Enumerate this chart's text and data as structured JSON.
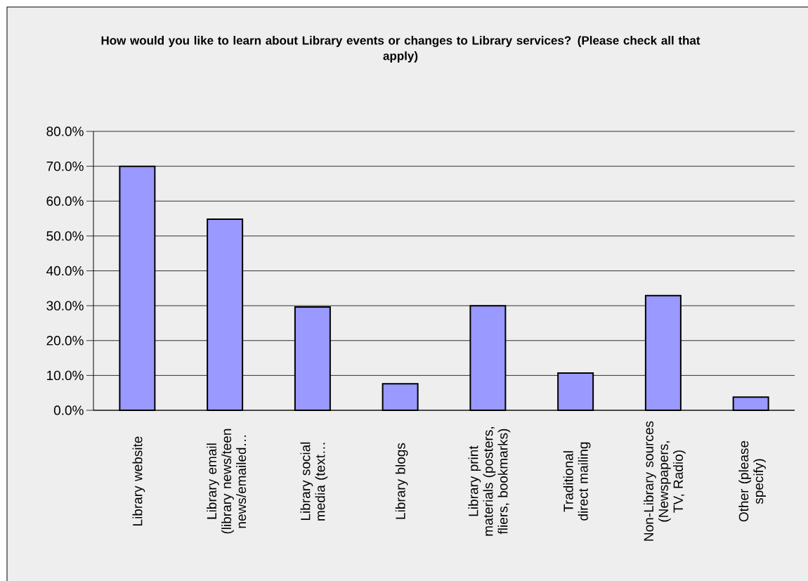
{
  "chart_data": {
    "type": "bar",
    "title": "How would you like to learn about Library events or changes to Library services? (Please check all that apply)",
    "categories": [
      "Library website",
      "Library email (library news/teen news/emailed…",
      "Library social media (text…",
      "Library blogs",
      "Library print materials (posters, fliers, bookmarks)",
      "Traditional direct mailing",
      "Non-Library sources (Newspapers, TV, Radio)",
      "Other (please specify)"
    ],
    "values": [
      70.0,
      54.8,
      29.6,
      7.6,
      30.0,
      10.7,
      32.9,
      3.8
    ],
    "color": "#9999ff",
    "ylim": [
      0,
      80
    ],
    "yticks": [
      {
        "value": 0,
        "label": "0.0%"
      },
      {
        "value": 10,
        "label": "10.0%"
      },
      {
        "value": 20,
        "label": "20.0%"
      },
      {
        "value": 30,
        "label": "30.0%"
      },
      {
        "value": 40,
        "label": "40.0%"
      },
      {
        "value": 50,
        "label": "50.0%"
      },
      {
        "value": 60,
        "label": "60.0%"
      },
      {
        "value": 70,
        "label": "70.0%"
      },
      {
        "value": 80,
        "label": "80.0%"
      }
    ],
    "grid": "y"
  }
}
